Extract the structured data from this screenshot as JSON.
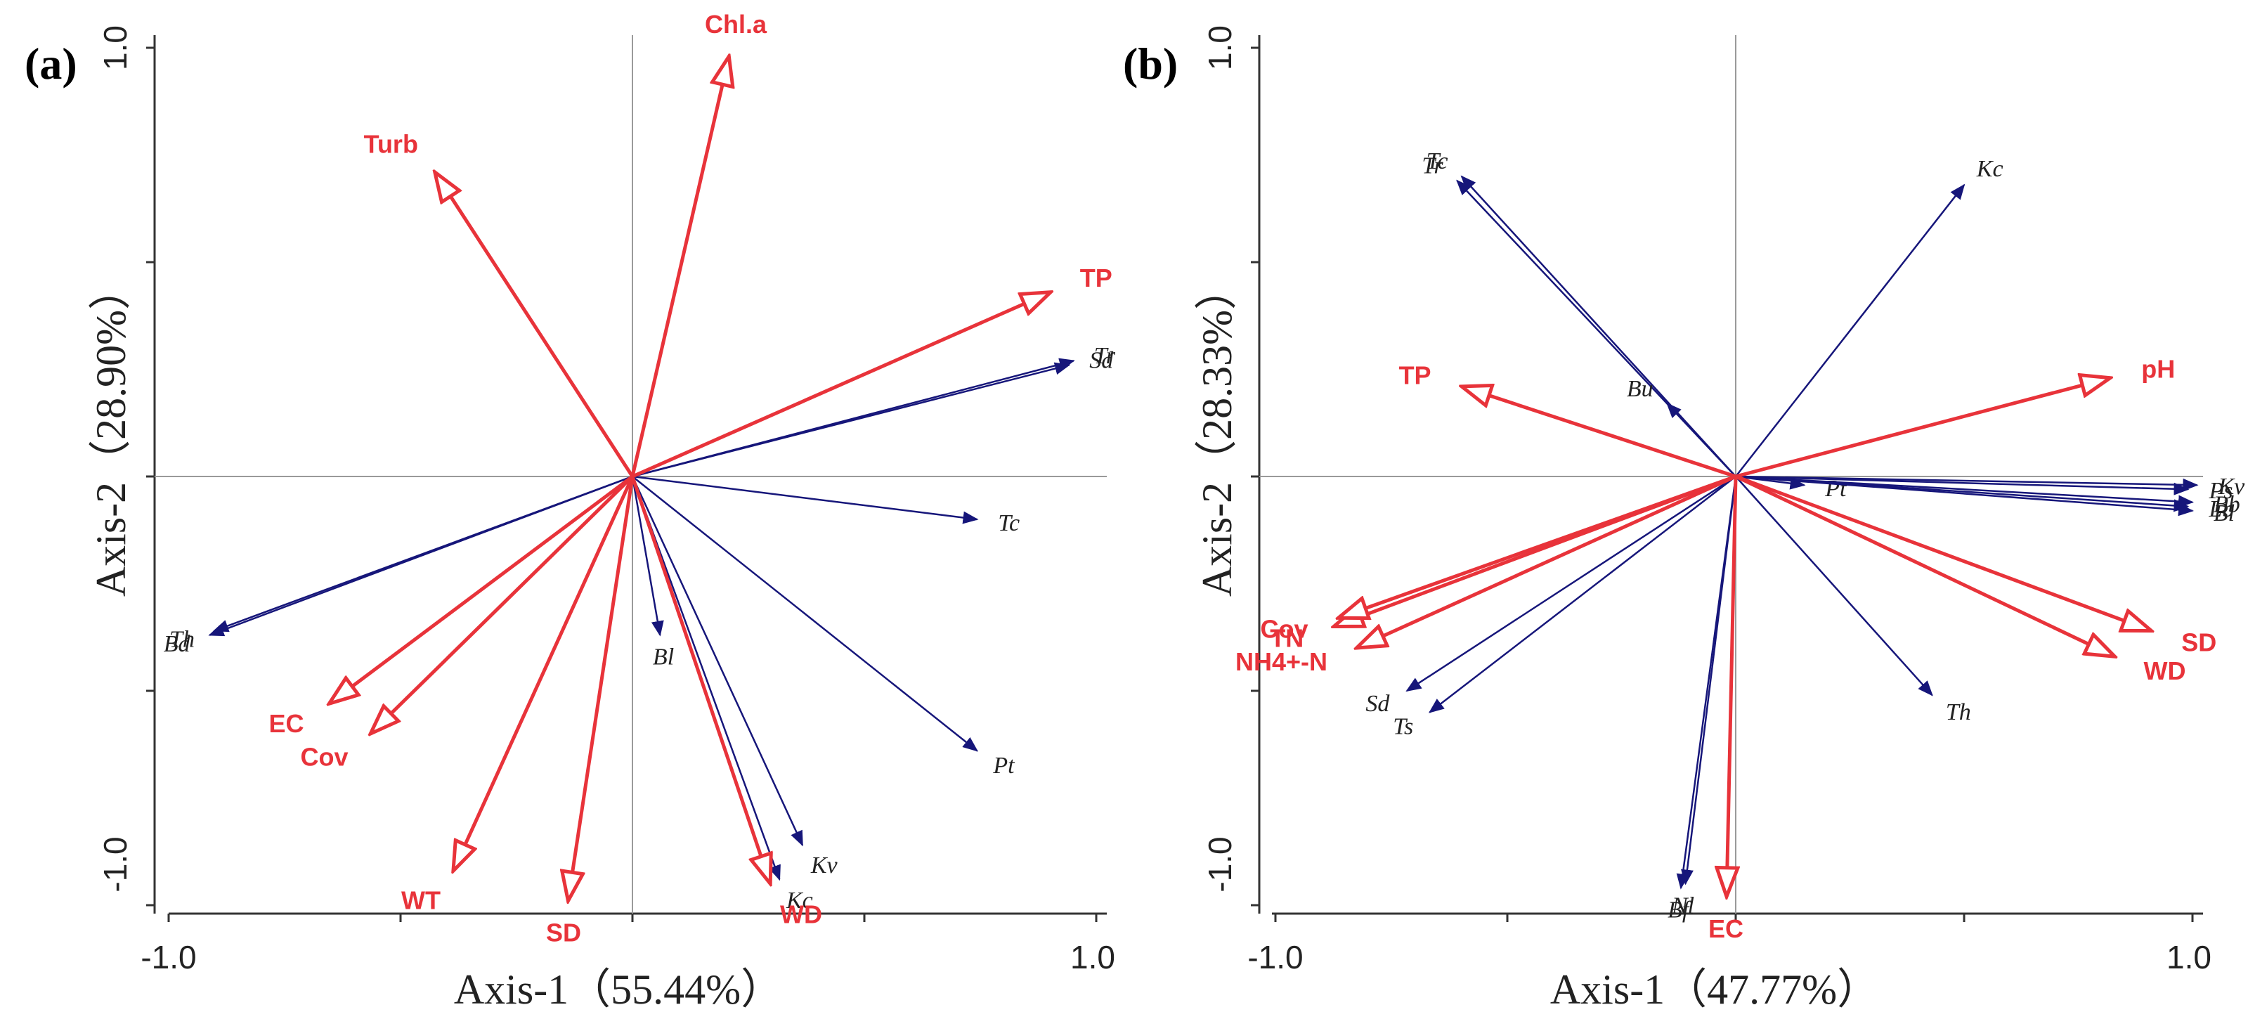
{
  "colors": {
    "env": "#e8333a",
    "species": "#16167a",
    "axis": "#333333",
    "ref": "#9a9a9a"
  },
  "chart_data": [
    {
      "type": "scatter",
      "panel_label": "(a)",
      "xlabel": "Axis-1（55.44%）",
      "ylabel": "Axis-2（28.90%）",
      "xlim": [
        -1.0,
        1.0
      ],
      "ylim": [
        -1.0,
        1.0
      ],
      "xtick_labels": [
        "-1.0",
        "1.0"
      ],
      "ytick_labels": [
        "1.0",
        "-1.0"
      ],
      "env_vectors": [
        {
          "label": "Chl.a",
          "x": 0.21,
          "y": 0.98
        },
        {
          "label": "Turb",
          "x": -0.43,
          "y": 0.71
        },
        {
          "label": "TP",
          "x": 0.91,
          "y": 0.43
        },
        {
          "label": "EC",
          "x": -0.66,
          "y": -0.53
        },
        {
          "label": "Cov",
          "x": -0.57,
          "y": -0.6
        },
        {
          "label": "WT",
          "x": -0.39,
          "y": -0.92
        },
        {
          "label": "SD",
          "x": -0.14,
          "y": -0.99
        },
        {
          "label": "WD",
          "x": 0.3,
          "y": -0.95
        }
      ],
      "species_vectors": [
        {
          "label": "Sd",
          "x": 0.95,
          "y": 0.26
        },
        {
          "label": "Tr",
          "x": 0.96,
          "y": 0.27
        },
        {
          "label": "Tc",
          "x": 0.75,
          "y": -0.1
        },
        {
          "label": "Bd",
          "x": -0.92,
          "y": -0.37
        },
        {
          "label": "Th",
          "x": -0.91,
          "y": -0.36
        },
        {
          "label": "Bl",
          "x": 0.06,
          "y": -0.37
        },
        {
          "label": "Pt",
          "x": 0.75,
          "y": -0.64
        },
        {
          "label": "Kv",
          "x": 0.37,
          "y": -0.86
        },
        {
          "label": "Kc",
          "x": 0.32,
          "y": -0.94
        }
      ]
    },
    {
      "type": "scatter",
      "panel_label": "(b)",
      "xlabel": "Axis-1（47.77%）",
      "ylabel": "Axis-2（28.33%）",
      "xlim": [
        -1.0,
        1.0
      ],
      "ylim": [
        -1.0,
        1.0
      ],
      "xtick_labels": [
        "-1.0",
        "1.0"
      ],
      "ytick_labels": [
        "1.0",
        "-1.0"
      ],
      "env_vectors": [
        {
          "label": "pH",
          "x": 0.82,
          "y": 0.23
        },
        {
          "label": "TP",
          "x": -0.6,
          "y": 0.21
        },
        {
          "label": "NH4+-N",
          "x": -0.83,
          "y": -0.4
        },
        {
          "label": "TN",
          "x": -0.88,
          "y": -0.35
        },
        {
          "label": "Cov",
          "x": -0.87,
          "y": -0.33
        },
        {
          "label": "SD",
          "x": 0.91,
          "y": -0.36
        },
        {
          "label": "WD",
          "x": 0.83,
          "y": -0.42
        },
        {
          "label": "EC",
          "x": -0.02,
          "y": -0.98
        }
      ],
      "species_vectors": [
        {
          "label": "Tc",
          "x": -0.6,
          "y": 0.7
        },
        {
          "label": "Tr",
          "x": -0.61,
          "y": 0.69
        },
        {
          "label": "Kc",
          "x": 0.5,
          "y": 0.68
        },
        {
          "label": "Bu",
          "x": -0.15,
          "y": 0.17
        },
        {
          "label": "Pt",
          "x": 0.15,
          "y": -0.02
        },
        {
          "label": "Kv",
          "x": 1.01,
          "y": -0.02
        },
        {
          "label": "Ps",
          "x": 0.99,
          "y": -0.03
        },
        {
          "label": "Bb",
          "x": 1.0,
          "y": -0.06
        },
        {
          "label": "Lb",
          "x": 0.99,
          "y": -0.07
        },
        {
          "label": "Bl",
          "x": 1.0,
          "y": -0.08
        },
        {
          "label": "Th",
          "x": 0.43,
          "y": -0.51
        },
        {
          "label": "Sd",
          "x": -0.72,
          "y": -0.5
        },
        {
          "label": "Ts",
          "x": -0.67,
          "y": -0.55
        },
        {
          "label": "Nl",
          "x": -0.11,
          "y": -0.95
        },
        {
          "label": "Bf",
          "x": -0.12,
          "y": -0.96
        }
      ]
    }
  ]
}
